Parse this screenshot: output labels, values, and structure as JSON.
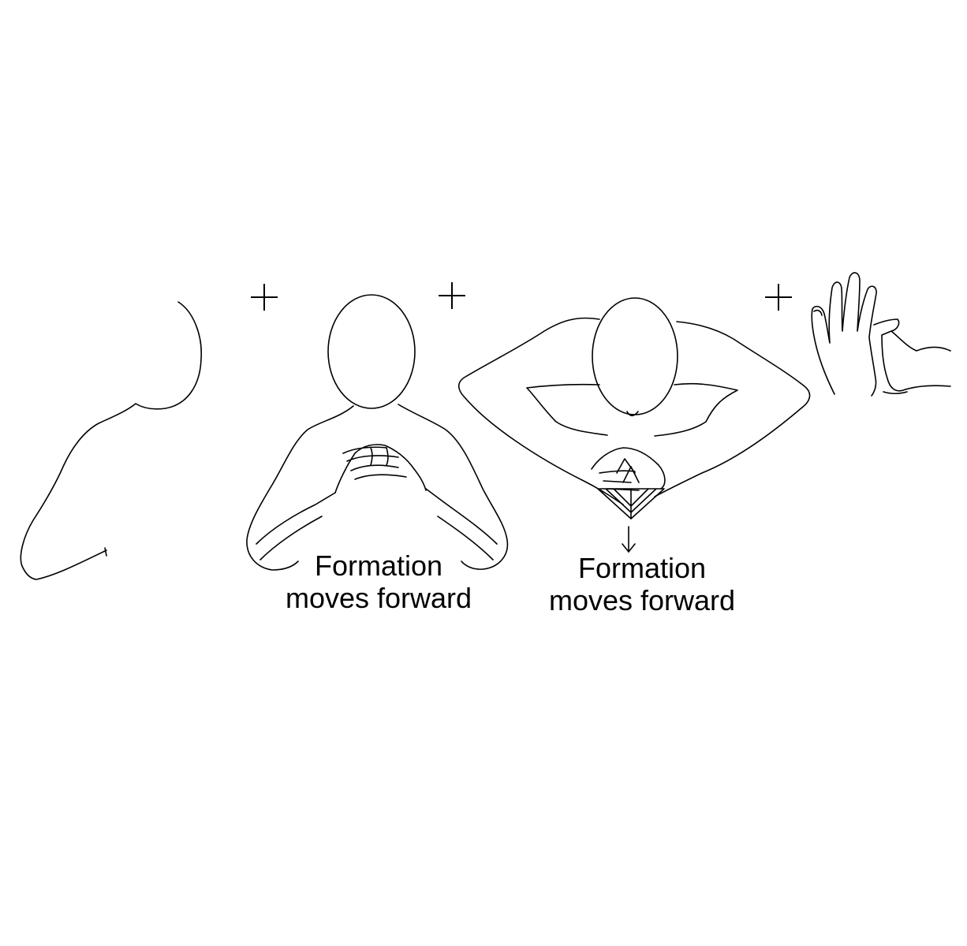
{
  "captions": [
    {
      "line1": "Formation",
      "line2": "moves forward"
    },
    {
      "line1": "Formation",
      "line2": "moves forward"
    }
  ],
  "symbols": {
    "plus": "+",
    "arrow": "down-arrow-icon"
  },
  "colors": {
    "stroke": "#000000",
    "background": "#ffffff"
  }
}
